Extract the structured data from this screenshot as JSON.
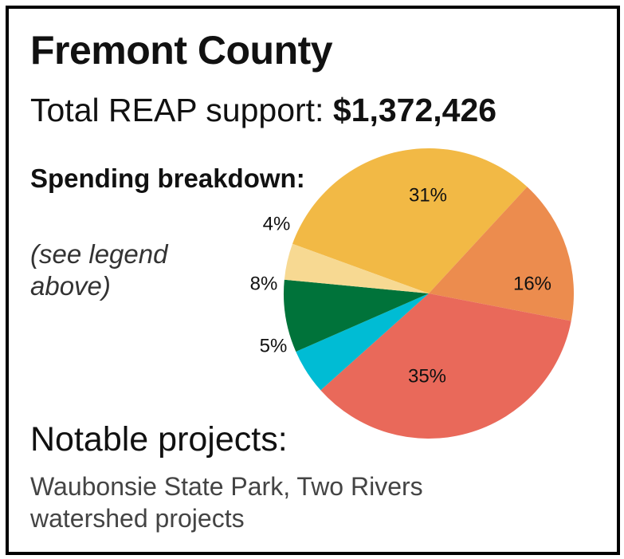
{
  "title": "Fremont County",
  "total_label": "Total REAP support:",
  "total_value": "$1,372,426",
  "breakdown_heading": "Spending breakdown:",
  "breakdown_note": "(see legend above)",
  "projects_heading": "Notable projects:",
  "projects_text": "Waubonsie State Park, Two Rivers watershed projects",
  "chart_data": {
    "type": "pie",
    "title": "",
    "slices": [
      {
        "label": "31%",
        "value": 31,
        "color": "#f2b945"
      },
      {
        "label": "16%",
        "value": 16,
        "color": "#ec8c4e"
      },
      {
        "label": "35%",
        "value": 35,
        "color": "#e9695a"
      },
      {
        "label": "5%",
        "value": 5,
        "color": "#00bcd4"
      },
      {
        "label": "8%",
        "value": 8,
        "color": "#00733a"
      },
      {
        "label": "4%",
        "value": 4,
        "color": "#f7d992"
      }
    ]
  }
}
